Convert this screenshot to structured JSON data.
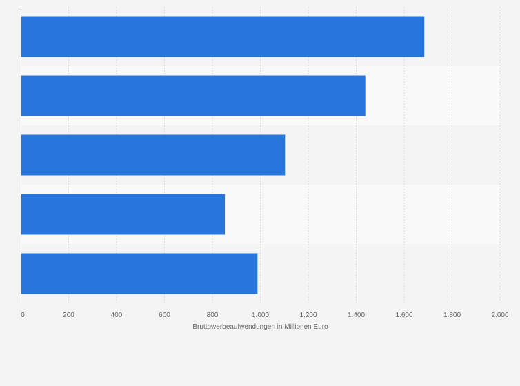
{
  "chart_data": {
    "type": "bar",
    "orientation": "horizontal",
    "categories": [
      "",
      "",
      "",
      "",
      ""
    ],
    "values": [
      1684,
      1438,
      1103,
      852,
      988
    ],
    "xlabel": "Bruttowerbeaufwendungen in Millionen Euro",
    "ylabel": "",
    "xlim": [
      0,
      2000
    ],
    "ticks": [
      0,
      200,
      400,
      600,
      800,
      1000,
      1200,
      1400,
      1600,
      1800,
      2000
    ],
    "tick_labels": [
      "0",
      "200",
      "400",
      "600",
      "800",
      "1.000",
      "1.200",
      "1.400",
      "1.600",
      "1.800",
      "2.000"
    ],
    "grid": true,
    "bar_color": "#2876dd",
    "band_colors": [
      "#f4f4f4",
      "#f9f9f9"
    ]
  }
}
